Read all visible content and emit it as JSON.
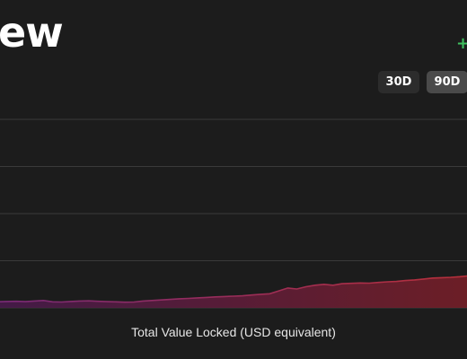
{
  "header": {
    "title_fragment": "ew",
    "change_symbol": "+"
  },
  "range_buttons": [
    {
      "label": "30D",
      "selected": false
    },
    {
      "label": "90D",
      "selected": true
    }
  ],
  "chart_data": {
    "type": "area",
    "title": "",
    "xlabel": "Total Value Locked (USD equivalent)",
    "ylabel": "",
    "grid": true,
    "colors": {
      "line_start": "#7a2a78",
      "line_end": "#b8303a",
      "fill_start": "#4a1a4e",
      "fill_end": "#7a1f28",
      "grid": "#3a3a3a",
      "change_positive": "#3fbf5f"
    },
    "ylim": [
      0,
      100
    ],
    "x": [
      0,
      1,
      2,
      3,
      4,
      5,
      6,
      7,
      8,
      9,
      10,
      11,
      12,
      13,
      14,
      15,
      16,
      17,
      18,
      19,
      20,
      21,
      22,
      23,
      24,
      25,
      26,
      27,
      28,
      29,
      30,
      31,
      32,
      33,
      34,
      35,
      36,
      37,
      38,
      39,
      40,
      41,
      42,
      43,
      44,
      45,
      46,
      47,
      48,
      49,
      50,
      51,
      52
    ],
    "values": [
      3.2,
      3.4,
      3.5,
      3.3,
      3.6,
      3.9,
      3.2,
      3.1,
      3.4,
      3.6,
      3.7,
      3.5,
      3.3,
      3.2,
      3.0,
      3.1,
      3.6,
      3.9,
      4.2,
      4.5,
      4.8,
      5.0,
      5.3,
      5.5,
      5.8,
      6.0,
      6.2,
      6.4,
      6.8,
      7.2,
      7.5,
      9.0,
      10.5,
      10.0,
      11.2,
      12.0,
      12.5,
      12.0,
      12.8,
      13.0,
      13.2,
      13.1,
      13.5,
      13.8,
      14.0,
      14.5,
      14.8,
      15.3,
      15.8,
      16.0,
      16.2,
      16.5,
      17.0
    ]
  }
}
